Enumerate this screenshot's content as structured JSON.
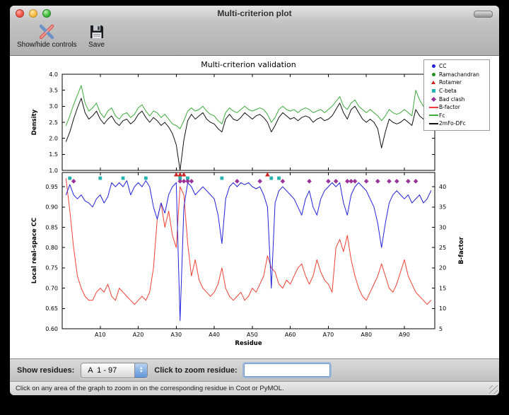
{
  "window": {
    "title": "Multi-criterion plot",
    "toolbar": {
      "show_hide_label": "Show/hide controls",
      "save_label": "Save"
    }
  },
  "chart_data": [
    {
      "type": "line",
      "title": "Multi-criterion validation",
      "ylabel": "Density",
      "ylim": [
        1.0,
        4.0
      ],
      "yticks": [
        1.0,
        1.5,
        2.0,
        2.5,
        3.0,
        3.5,
        4.0
      ],
      "x_start": 1,
      "series": [
        {
          "name": "Fc",
          "color": "#3aaa3a",
          "values": [
            2.4,
            2.7,
            3.05,
            3.35,
            3.65,
            3.1,
            2.85,
            2.95,
            3.1,
            2.8,
            2.65,
            2.85,
            2.95,
            2.7,
            2.6,
            2.75,
            2.8,
            2.65,
            2.75,
            2.95,
            3.05,
            2.85,
            2.7,
            2.85,
            2.8,
            2.65,
            2.75,
            2.6,
            2.45,
            2.4,
            2.3,
            2.55,
            2.85,
            2.95,
            2.85,
            2.9,
            3.0,
            2.85,
            2.75,
            2.7,
            2.55,
            2.45,
            2.8,
            2.95,
            2.85,
            2.8,
            2.9,
            3.0,
            2.9,
            2.85,
            2.9,
            2.95,
            2.9,
            2.75,
            2.5,
            2.65,
            2.9,
            3.0,
            2.9,
            2.85,
            2.9,
            2.8,
            2.9,
            2.95,
            2.9,
            2.8,
            2.85,
            2.9,
            2.8,
            2.9,
            3.0,
            3.15,
            3.3,
            3.0,
            2.9,
            3.1,
            3.2,
            3.0,
            2.9,
            2.8,
            2.9,
            2.8,
            2.7,
            2.55,
            2.7,
            2.9,
            2.8,
            2.75,
            2.8,
            2.9,
            2.8,
            2.7,
            3.5,
            3.2,
            3.0,
            3.3,
            3.5
          ]
        },
        {
          "name": "2mFo-DFc",
          "color": "#111111",
          "values": [
            1.9,
            2.2,
            2.6,
            2.95,
            3.25,
            2.8,
            2.6,
            2.7,
            2.85,
            2.6,
            2.45,
            2.6,
            2.7,
            2.5,
            2.4,
            2.55,
            2.6,
            2.45,
            2.55,
            2.75,
            2.85,
            2.65,
            2.5,
            2.65,
            2.55,
            2.4,
            2.5,
            2.35,
            2.15,
            1.8,
            1.0,
            1.95,
            2.55,
            2.75,
            2.6,
            2.7,
            2.8,
            2.6,
            2.5,
            2.45,
            2.3,
            2.2,
            2.6,
            2.75,
            2.6,
            2.55,
            2.65,
            2.8,
            2.7,
            2.6,
            2.7,
            2.75,
            2.65,
            2.5,
            2.2,
            2.4,
            2.65,
            2.8,
            2.7,
            2.6,
            2.65,
            2.55,
            2.65,
            2.7,
            2.65,
            2.5,
            2.6,
            2.65,
            2.55,
            2.6,
            2.7,
            2.9,
            3.1,
            2.8,
            2.6,
            2.9,
            3.0,
            2.8,
            2.6,
            2.5,
            2.6,
            2.5,
            2.3,
            1.7,
            2.2,
            2.6,
            2.5,
            2.45,
            2.5,
            2.6,
            2.5,
            2.4,
            2.9,
            2.7,
            2.6,
            2.8,
            2.9
          ]
        }
      ]
    },
    {
      "type": "line",
      "xlabel": "Residue",
      "ylabel": "Local real-space CC",
      "ylabel_right": "B-factor",
      "ylim": [
        0.6,
        0.985
      ],
      "yticks": [
        0.6,
        0.65,
        0.7,
        0.75,
        0.8,
        0.85,
        0.9,
        0.95
      ],
      "ylim_right": [
        5,
        43.5
      ],
      "yticks_right": [
        5,
        10,
        15,
        20,
        25,
        30,
        35,
        40
      ],
      "xlim": [
        0,
        98
      ],
      "xticks": [
        10,
        20,
        30,
        40,
        50,
        60,
        70,
        80,
        90
      ],
      "xtick_labels": [
        "A10",
        "A20",
        "A30",
        "A40",
        "A50",
        "A60",
        "A70",
        "A80",
        "A90"
      ],
      "x_start": 1,
      "series": [
        {
          "name": "CC",
          "axis": "left",
          "color": "#2222dd",
          "values": [
            0.93,
            0.955,
            0.93,
            0.92,
            0.93,
            0.915,
            0.91,
            0.9,
            0.92,
            0.93,
            0.91,
            0.925,
            0.96,
            0.95,
            0.96,
            0.95,
            0.965,
            0.93,
            0.95,
            0.96,
            0.95,
            0.965,
            0.95,
            0.9,
            0.87,
            0.91,
            0.885,
            0.93,
            0.95,
            0.96,
            0.62,
            0.9,
            0.96,
            0.95,
            0.93,
            0.94,
            0.95,
            0.94,
            0.93,
            0.92,
            0.88,
            0.81,
            0.92,
            0.95,
            0.96,
            0.95,
            0.96,
            0.955,
            0.96,
            0.95,
            0.945,
            0.95,
            0.93,
            0.9,
            0.7,
            0.91,
            0.94,
            0.95,
            0.94,
            0.93,
            0.92,
            0.9,
            0.88,
            0.92,
            0.94,
            0.9,
            0.88,
            0.92,
            0.94,
            0.95,
            0.96,
            0.95,
            0.96,
            0.91,
            0.88,
            0.93,
            0.95,
            0.96,
            0.95,
            0.94,
            0.92,
            0.9,
            0.86,
            0.8,
            0.86,
            0.91,
            0.93,
            0.94,
            0.93,
            0.92,
            0.93,
            0.91,
            0.92,
            0.93,
            0.91,
            0.92,
            0.94
          ]
        },
        {
          "name": "B-factor",
          "axis": "right",
          "color": "#f04134",
          "values": [
            42,
            34,
            25,
            18,
            15,
            13,
            12,
            12,
            14,
            15,
            14,
            16,
            13,
            12,
            15,
            14,
            13,
            12,
            11,
            12,
            13,
            12,
            14,
            20,
            32,
            36,
            30,
            34,
            28,
            25,
            40,
            38,
            26,
            18,
            22,
            17,
            15,
            14,
            13,
            14,
            16,
            20,
            15,
            13,
            12,
            13,
            14,
            12,
            13,
            15,
            14,
            16,
            18,
            23,
            20,
            19,
            16,
            15,
            17,
            16,
            18,
            20,
            21,
            18,
            16,
            18,
            22,
            19,
            17,
            16,
            14,
            25,
            27,
            24,
            28,
            22,
            18,
            15,
            13,
            12,
            14,
            16,
            18,
            21,
            18,
            15,
            14,
            16,
            19,
            22,
            18,
            16,
            14,
            13,
            12,
            11,
            12
          ]
        }
      ],
      "outlier_markers": [
        {
          "name": "Ramachandran",
          "shape": "circle",
          "color": "#1e8f1e",
          "residues": []
        },
        {
          "name": "Rotamer",
          "shape": "triangle",
          "color": "#cc2222",
          "residues": [
            30,
            31,
            32,
            54
          ]
        },
        {
          "name": "C-beta",
          "shape": "square",
          "color": "#25b3af",
          "residues": [
            2,
            10,
            16,
            22,
            31,
            33,
            42,
            55,
            57
          ]
        },
        {
          "name": "Bad clash",
          "shape": "diamond",
          "color": "#993399",
          "residues": [
            3,
            31,
            32,
            33,
            34,
            46,
            52,
            58,
            65,
            70,
            72,
            75,
            76,
            77,
            80,
            83,
            86,
            88,
            91,
            93
          ]
        }
      ],
      "legend_items": [
        {
          "label": "CC",
          "kind": "circle",
          "color": "#2222dd"
        },
        {
          "label": "Ramachandran",
          "kind": "circle",
          "color": "#1e8f1e"
        },
        {
          "label": "Rotamer",
          "kind": "triangle",
          "color": "#cc2222"
        },
        {
          "label": "C-beta",
          "kind": "square",
          "color": "#25b3af"
        },
        {
          "label": "Bad clash",
          "kind": "diamond",
          "color": "#993399"
        },
        {
          "label": "B-factor",
          "kind": "line",
          "color": "#f04134"
        },
        {
          "label": "Fc",
          "kind": "line",
          "color": "#3aaa3a"
        },
        {
          "label": "2mFo-DFc",
          "kind": "line",
          "color": "#111111"
        }
      ]
    }
  ],
  "controls": {
    "show_residues_label": "Show residues:",
    "chain_range_value": "A  1 - 97",
    "zoom_label": "Click to zoom residue:",
    "zoom_value": ""
  },
  "status_bar": {
    "text": "Click on any area of the graph to zoom in on the corresponding residue in Coot or PyMOL."
  }
}
